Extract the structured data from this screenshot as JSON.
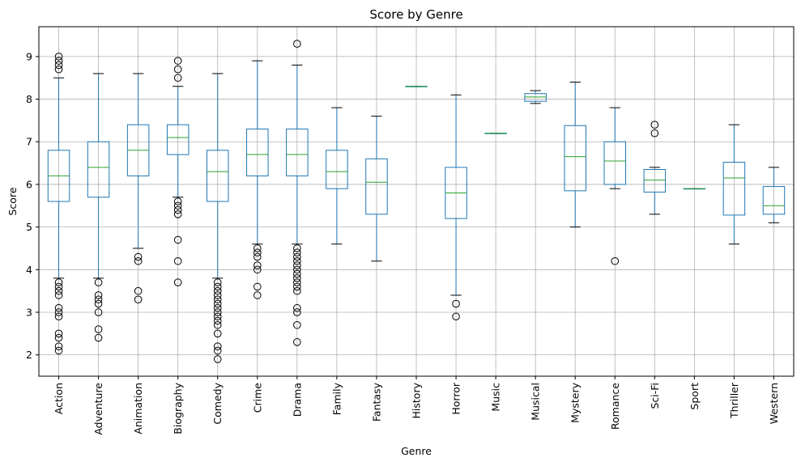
{
  "chart_data": {
    "type": "box",
    "title": "Score by Genre",
    "xlabel": "Genre",
    "ylabel": "Score",
    "ylim": [
      1.5,
      9.7
    ],
    "yticks": [
      2,
      3,
      4,
      5,
      6,
      7,
      8,
      9
    ],
    "grid": true,
    "colors": {
      "box": "#1f77b4",
      "median": "#2ca02c",
      "whisker": "#1f77b4",
      "cap": "#000000",
      "flier": "#000000",
      "grid": "#b0b0b0"
    },
    "categories": [
      "Action",
      "Adventure",
      "Animation",
      "Biography",
      "Comedy",
      "Crime",
      "Drama",
      "Family",
      "Fantasy",
      "History",
      "Horror",
      "Music",
      "Musical",
      "Mystery",
      "Romance",
      "Sci-Fi",
      "Sport",
      "Thriller",
      "Western"
    ],
    "boxes": [
      {
        "category": "Action",
        "whislo": 3.8,
        "q1": 5.6,
        "med": 6.2,
        "q3": 6.8,
        "whishi": 8.5,
        "fliers": [
          9.0,
          8.9,
          8.8,
          8.7,
          3.7,
          3.6,
          3.5,
          3.4,
          3.1,
          3.0,
          2.9,
          2.5,
          2.4,
          2.2,
          2.1
        ]
      },
      {
        "category": "Adventure",
        "whislo": 3.8,
        "q1": 5.7,
        "med": 6.4,
        "q3": 7.0,
        "whishi": 8.6,
        "fliers": [
          3.7,
          3.4,
          3.3,
          3.2,
          3.0,
          2.6,
          2.4
        ]
      },
      {
        "category": "Animation",
        "whislo": 4.5,
        "q1": 6.2,
        "med": 6.8,
        "q3": 7.4,
        "whishi": 8.6,
        "fliers": [
          4.3,
          4.2,
          3.5,
          3.3
        ]
      },
      {
        "category": "Biography",
        "whislo": 5.7,
        "q1": 6.7,
        "med": 7.1,
        "q3": 7.4,
        "whishi": 8.3,
        "fliers": [
          8.9,
          8.7,
          8.5,
          5.6,
          5.5,
          5.4,
          5.3,
          4.7,
          4.2,
          3.7
        ]
      },
      {
        "category": "Comedy",
        "whislo": 3.8,
        "q1": 5.6,
        "med": 6.3,
        "q3": 6.8,
        "whishi": 8.6,
        "fliers": [
          3.7,
          3.6,
          3.5,
          3.4,
          3.3,
          3.2,
          3.1,
          3.0,
          2.9,
          2.8,
          2.7,
          2.5,
          2.2,
          2.1,
          1.9
        ]
      },
      {
        "category": "Crime",
        "whislo": 4.6,
        "q1": 6.2,
        "med": 6.7,
        "q3": 7.3,
        "whishi": 8.9,
        "fliers": [
          4.5,
          4.4,
          4.3,
          4.1,
          4.0,
          3.6,
          3.4
        ]
      },
      {
        "category": "Drama",
        "whislo": 4.6,
        "q1": 6.2,
        "med": 6.7,
        "q3": 7.3,
        "whishi": 8.8,
        "fliers": [
          9.3,
          4.5,
          4.4,
          4.3,
          4.2,
          4.1,
          4.0,
          3.9,
          3.8,
          3.7,
          3.6,
          3.5,
          3.1,
          3.0,
          2.7,
          2.3
        ]
      },
      {
        "category": "Family",
        "whislo": 4.6,
        "q1": 5.9,
        "med": 6.3,
        "q3": 6.8,
        "whishi": 7.8,
        "fliers": []
      },
      {
        "category": "Fantasy",
        "whislo": 4.2,
        "q1": 5.3,
        "med": 6.05,
        "q3": 6.6,
        "whishi": 7.6,
        "fliers": []
      },
      {
        "category": "History",
        "whislo": 8.3,
        "q1": 8.3,
        "med": 8.3,
        "q3": 8.3,
        "whishi": 8.3,
        "fliers": []
      },
      {
        "category": "Horror",
        "whislo": 3.4,
        "q1": 5.2,
        "med": 5.8,
        "q3": 6.4,
        "whishi": 8.1,
        "fliers": [
          3.2,
          2.9
        ]
      },
      {
        "category": "Music",
        "whislo": 7.2,
        "q1": 7.2,
        "med": 7.2,
        "q3": 7.2,
        "whishi": 7.2,
        "fliers": []
      },
      {
        "category": "Musical",
        "whislo": 7.9,
        "q1": 7.95,
        "med": 8.05,
        "q3": 8.13,
        "whishi": 8.2,
        "fliers": []
      },
      {
        "category": "Mystery",
        "whislo": 5.0,
        "q1": 5.85,
        "med": 6.65,
        "q3": 7.38,
        "whishi": 8.4,
        "fliers": []
      },
      {
        "category": "Romance",
        "whislo": 5.9,
        "q1": 6.0,
        "med": 6.55,
        "q3": 7.0,
        "whishi": 7.8,
        "fliers": [
          4.2
        ]
      },
      {
        "category": "Sci-Fi",
        "whislo": 5.3,
        "q1": 5.82,
        "med": 6.1,
        "q3": 6.35,
        "whishi": 6.4,
        "fliers": [
          7.4,
          7.2
        ]
      },
      {
        "category": "Sport",
        "whislo": 5.9,
        "q1": 5.9,
        "med": 5.9,
        "q3": 5.9,
        "whishi": 5.9,
        "fliers": []
      },
      {
        "category": "Thriller",
        "whislo": 4.6,
        "q1": 5.28,
        "med": 6.15,
        "q3": 6.52,
        "whishi": 7.4,
        "fliers": []
      },
      {
        "category": "Western",
        "whislo": 5.1,
        "q1": 5.3,
        "med": 5.5,
        "q3": 5.95,
        "whishi": 6.4,
        "fliers": []
      }
    ]
  }
}
